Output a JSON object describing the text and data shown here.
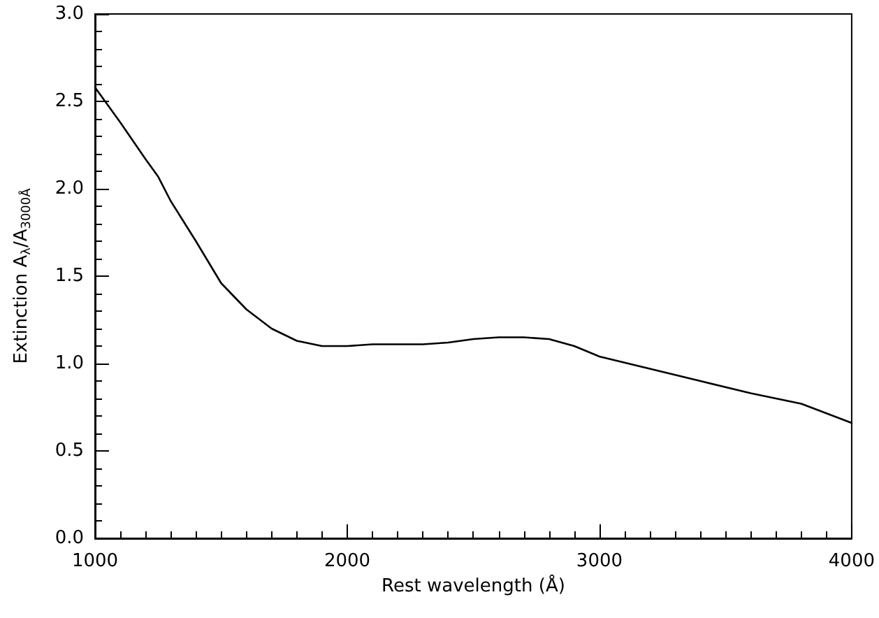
{
  "chart_data": {
    "type": "line",
    "xlabel": "Rest wavelength (Å)",
    "ylabel": "Extinction A$_{λ}$/A$_{3000Å}$",
    "x": [
      1000,
      1100,
      1200,
      1250,
      1300,
      1400,
      1500,
      1600,
      1700,
      1800,
      1900,
      2000,
      2100,
      2200,
      2300,
      2400,
      2500,
      2600,
      2700,
      2800,
      2900,
      3000,
      3200,
      3400,
      3600,
      3800,
      4000
    ],
    "series": [
      {
        "color": "#000000",
        "values": [
          2.58,
          2.38,
          2.17,
          2.07,
          1.93,
          1.7,
          1.46,
          1.31,
          1.2,
          1.13,
          1.1,
          1.1,
          1.11,
          1.11,
          1.11,
          1.12,
          1.14,
          1.15,
          1.15,
          1.14,
          1.1,
          1.04,
          0.97,
          0.9,
          0.83,
          0.77,
          0.66
        ]
      }
    ],
    "xlim": [
      1000,
      4000
    ],
    "xticks": [
      1000,
      2000,
      3000,
      4000
    ],
    "ylim": [
      0,
      3
    ],
    "yticks": [
      {
        "value": 0,
        "label": "0.0"
      },
      0.5,
      {
        "value": 1,
        "label": "1.0"
      },
      1.5,
      {
        "value": 2,
        "label": "2.0"
      },
      2.5,
      {
        "value": 3,
        "label": "3.0"
      }
    ],
    "grid": false,
    "marker": "none",
    "line_style": "solid"
  }
}
